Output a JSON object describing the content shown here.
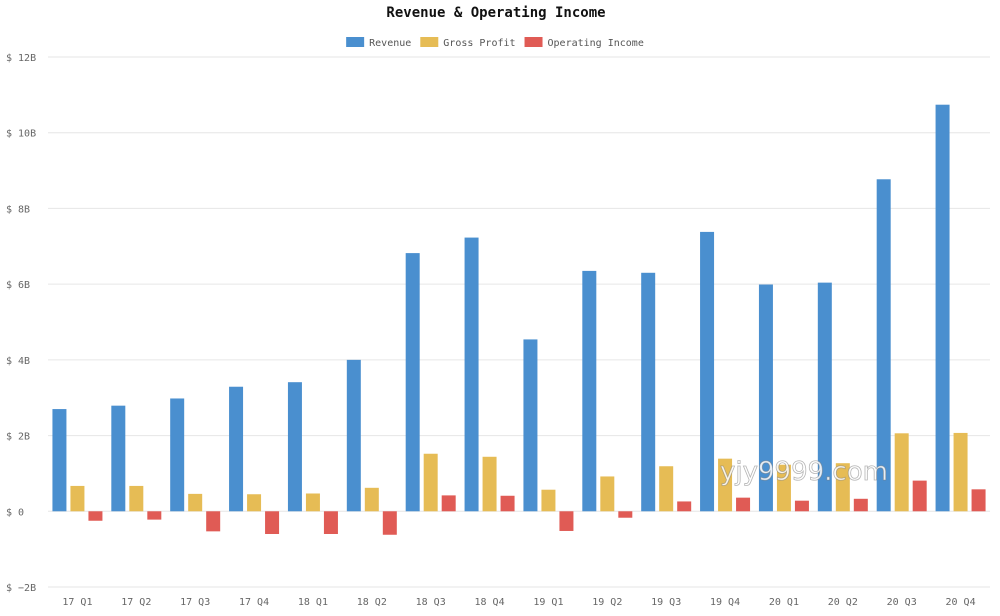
{
  "chart_data": {
    "type": "bar",
    "title": "Revenue & Operating Income",
    "categories": [
      "17 Q1",
      "17 Q2",
      "17 Q3",
      "17 Q4",
      "18 Q1",
      "18 Q2",
      "18 Q3",
      "18 Q4",
      "19 Q1",
      "19 Q2",
      "19 Q3",
      "19 Q4",
      "20 Q1",
      "20 Q2",
      "20 Q3",
      "20 Q4"
    ],
    "series": [
      {
        "name": "Revenue",
        "color": "#4a8fcf",
        "values": [
          2.7,
          2.79,
          2.98,
          3.29,
          3.41,
          4.0,
          6.82,
          7.23,
          4.54,
          6.35,
          6.3,
          7.38,
          5.99,
          6.04,
          8.77,
          10.74
        ]
      },
      {
        "name": "Gross Profit",
        "color": "#e6bc55",
        "values": [
          0.67,
          0.67,
          0.46,
          0.45,
          0.47,
          0.62,
          1.52,
          1.44,
          0.57,
          0.92,
          1.19,
          1.39,
          1.23,
          1.27,
          2.06,
          2.07
        ]
      },
      {
        "name": "Operating Income",
        "color": "#e05b55",
        "values": [
          -0.25,
          -0.22,
          -0.53,
          -0.6,
          -0.6,
          -0.62,
          0.42,
          0.41,
          -0.52,
          -0.17,
          0.26,
          0.36,
          0.28,
          0.33,
          0.81,
          0.58
        ]
      }
    ],
    "ylim": [
      -2,
      12
    ],
    "yticks": [
      -2,
      0,
      2,
      4,
      6,
      8,
      10,
      12
    ],
    "ytick_labels": [
      "$ −2B",
      "$ 0",
      "$ 2B",
      "$ 4B",
      "$ 6B",
      "$ 8B",
      "$ 10B",
      "$ 12B"
    ],
    "xlabel": "",
    "ylabel": "",
    "grid": true,
    "legend_position": "top-center"
  },
  "watermark": "yjy9999.com"
}
